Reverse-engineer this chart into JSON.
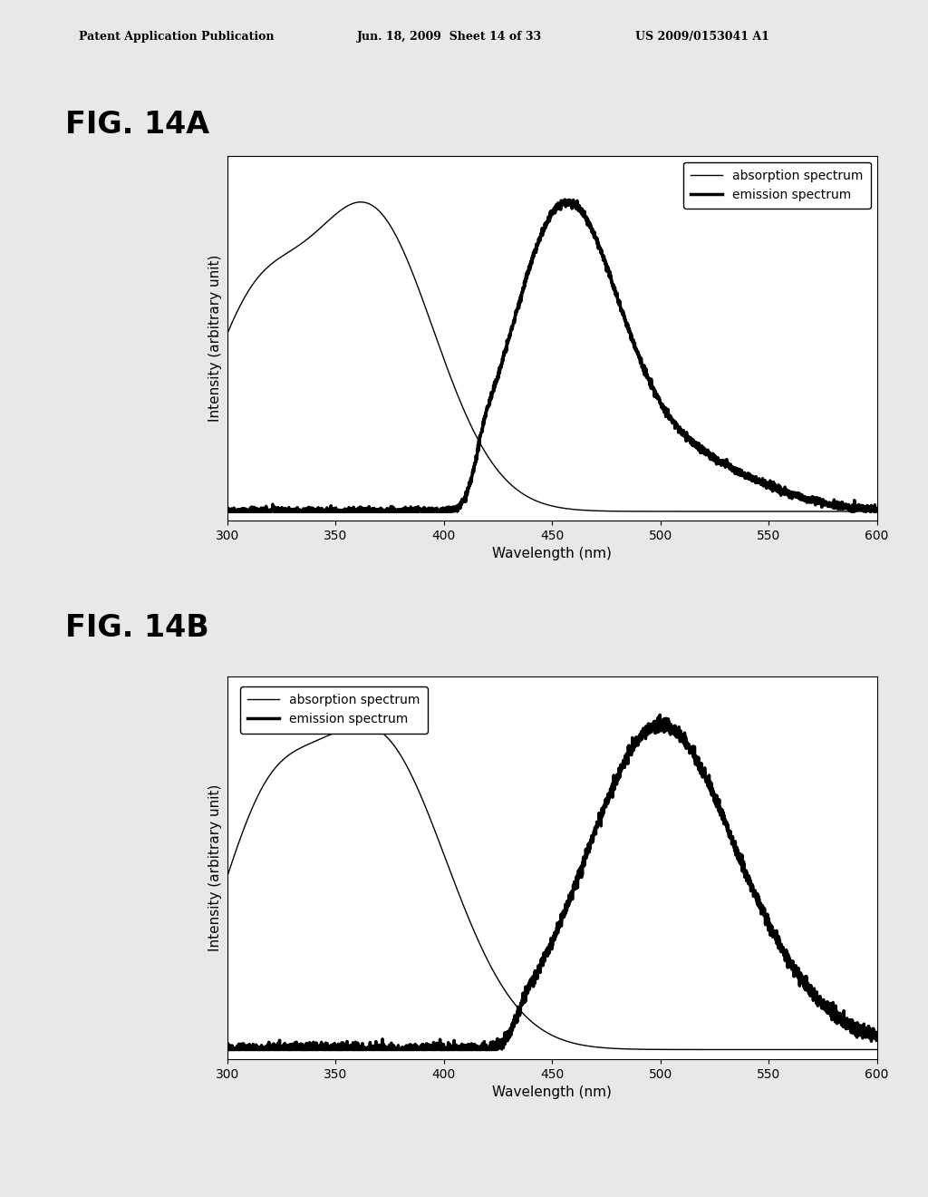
{
  "fig14a_label": "FIG. 14A",
  "fig14b_label": "FIG. 14B",
  "header_left": "Patent Application Publication",
  "header_center": "Jun. 18, 2009  Sheet 14 of 33",
  "header_right": "US 2009/0153041 A1",
  "xlabel": "Wavelength (nm)",
  "ylabel": "Intensity (arbitrary unit)",
  "xmin": 300,
  "xmax": 600,
  "xticks": [
    300,
    350,
    400,
    450,
    500,
    550,
    600
  ],
  "legend_absorption": "absorption spectrum",
  "legend_emission": "emission spectrum",
  "background_color": "#e8e8e8",
  "plot_bg": "#ffffff",
  "header_fontsize": 9,
  "fig_label_fontsize": 24,
  "axis_label_fontsize": 11,
  "tick_fontsize": 10,
  "legend_fontsize": 10,
  "abs_linewidth": 1.0,
  "emi_linewidth": 2.5
}
